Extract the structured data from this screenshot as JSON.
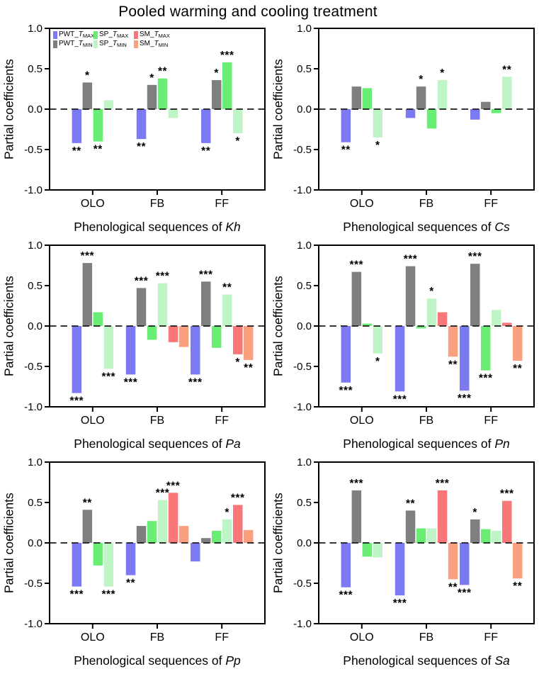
{
  "title": "Pooled warming and cooling treatment",
  "axis": {
    "ylabel": "Partial coefficients",
    "yticks": [
      {
        "label": "1.0",
        "v": 1.0
      },
      {
        "label": "0.5",
        "v": 0.5
      },
      {
        "label": "0.0",
        "v": 0.0
      },
      {
        "label": "-0.5",
        "v": -0.5
      },
      {
        "label": "-1.0",
        "v": -1.0
      }
    ],
    "ylim": [
      -1.0,
      1.0
    ]
  },
  "series_colors": {
    "PWT_TMAX": "#7B7AF2",
    "PWT_TMIN": "#7F7F7F",
    "SP_TMAX": "#69ED75",
    "SP_TMIN": "#BFF4C6",
    "SM_TMAX": "#F97779",
    "SM_TMIN": "#FAA07E"
  },
  "legend": {
    "entries": [
      {
        "prefix": "PWT_",
        "t": "T",
        "sub": "MAX",
        "color": "#7B7AF2"
      },
      {
        "prefix": "SP_",
        "t": "T",
        "sub": "MAX",
        "color": "#69ED75"
      },
      {
        "prefix": "SM_",
        "t": "T",
        "sub": "MAX",
        "color": "#F97779"
      },
      {
        "prefix": "PWT_",
        "t": "T",
        "sub": "MIN",
        "color": "#7F7F7F"
      },
      {
        "prefix": "SP_",
        "t": "T",
        "sub": "MIN",
        "color": "#BFF4C6"
      },
      {
        "prefix": "SM_",
        "t": "T",
        "sub": "MIN",
        "color": "#FAA07E"
      }
    ]
  },
  "chart_data": [
    {
      "type": "bar",
      "species": "Kh",
      "xlabel_prefix": "Phenological sequences of ",
      "ylabel": "Partial coefficients",
      "ylim": [
        -1.0,
        1.0
      ],
      "categories": [
        "OLO",
        "FB",
        "FF"
      ],
      "series": [
        {
          "name": "PWT_TMAX",
          "values": [
            -0.42,
            -0.37,
            -0.42
          ],
          "sig": [
            "**",
            "**",
            "**"
          ]
        },
        {
          "name": "PWT_TMIN",
          "values": [
            0.33,
            0.3,
            0.36
          ],
          "sig": [
            "*",
            "*",
            "*"
          ]
        },
        {
          "name": "SP_TMAX",
          "values": [
            -0.4,
            0.38,
            0.58
          ],
          "sig": [
            "**",
            "**",
            "***"
          ]
        },
        {
          "name": "SP_TMIN",
          "values": [
            0.11,
            -0.11,
            -0.3
          ],
          "sig": [
            "",
            "",
            "*"
          ]
        }
      ]
    },
    {
      "type": "bar",
      "species": "Cs",
      "xlabel_prefix": "Phenological sequences of ",
      "ylabel": "Partial coefficients",
      "ylim": [
        -1.0,
        1.0
      ],
      "categories": [
        "OLO",
        "FB",
        "FF"
      ],
      "series": [
        {
          "name": "PWT_TMAX",
          "values": [
            -0.41,
            -0.11,
            -0.13
          ],
          "sig": [
            "**",
            "",
            ""
          ]
        },
        {
          "name": "PWT_TMIN",
          "values": [
            0.28,
            0.28,
            0.09
          ],
          "sig": [
            "",
            "*",
            ""
          ]
        },
        {
          "name": "SP_TMAX",
          "values": [
            0.26,
            -0.24,
            -0.05
          ],
          "sig": [
            "",
            "",
            ""
          ]
        },
        {
          "name": "SP_TMIN",
          "values": [
            -0.35,
            0.36,
            0.4
          ],
          "sig": [
            "*",
            "*",
            "**"
          ]
        }
      ]
    },
    {
      "type": "bar",
      "species": "Pa",
      "xlabel_prefix": "Phenological sequences of ",
      "ylabel": "Partial coefficients",
      "ylim": [
        -1.0,
        1.0
      ],
      "categories": [
        "OLO",
        "FB",
        "FF"
      ],
      "series": [
        {
          "name": "PWT_TMAX",
          "values": [
            -0.83,
            -0.6,
            -0.6
          ],
          "sig": [
            "***",
            "***",
            "***"
          ]
        },
        {
          "name": "PWT_TMIN",
          "values": [
            0.78,
            0.47,
            0.55
          ],
          "sig": [
            "***",
            "***",
            "***"
          ]
        },
        {
          "name": "SP_TMAX",
          "values": [
            0.17,
            -0.17,
            -0.27
          ],
          "sig": [
            "",
            "",
            ""
          ]
        },
        {
          "name": "SP_TMIN",
          "values": [
            -0.53,
            0.53,
            0.39
          ],
          "sig": [
            "***",
            "***",
            "**"
          ]
        },
        {
          "name": "SM_TMAX",
          "values": [
            null,
            -0.2,
            -0.35
          ],
          "sig": [
            "",
            "",
            "*"
          ]
        },
        {
          "name": "SM_TMIN",
          "values": [
            null,
            -0.26,
            -0.42
          ],
          "sig": [
            "",
            "",
            "**"
          ]
        }
      ]
    },
    {
      "type": "bar",
      "species": "Pn",
      "xlabel_prefix": "Phenological sequences of ",
      "ylabel": "Partial coefficients",
      "ylim": [
        -1.0,
        1.0
      ],
      "categories": [
        "OLO",
        "FB",
        "FF"
      ],
      "series": [
        {
          "name": "PWT_TMAX",
          "values": [
            -0.7,
            -0.81,
            -0.8
          ],
          "sig": [
            "***",
            "***",
            "***"
          ]
        },
        {
          "name": "PWT_TMIN",
          "values": [
            0.67,
            0.74,
            0.77
          ],
          "sig": [
            "***",
            "***",
            "***"
          ]
        },
        {
          "name": "SP_TMAX",
          "values": [
            0.03,
            -0.03,
            -0.55
          ],
          "sig": [
            "",
            "",
            "***"
          ]
        },
        {
          "name": "SP_TMIN",
          "values": [
            -0.34,
            0.34,
            0.2
          ],
          "sig": [
            "*",
            "*",
            ""
          ]
        },
        {
          "name": "SM_TMAX",
          "values": [
            null,
            0.17,
            0.04
          ],
          "sig": [
            "",
            "",
            ""
          ]
        },
        {
          "name": "SM_TMIN",
          "values": [
            null,
            -0.38,
            -0.43
          ],
          "sig": [
            "",
            "**",
            "**"
          ]
        }
      ]
    },
    {
      "type": "bar",
      "species": "Pp",
      "xlabel_prefix": "Phenological sequences of ",
      "ylabel": "Partial coefficients",
      "ylim": [
        -1.0,
        1.0
      ],
      "categories": [
        "OLO",
        "FB",
        "FF"
      ],
      "series": [
        {
          "name": "PWT_TMAX",
          "values": [
            -0.54,
            -0.4,
            -0.23
          ],
          "sig": [
            "***",
            "**",
            ""
          ]
        },
        {
          "name": "PWT_TMIN",
          "values": [
            0.41,
            0.21,
            0.06
          ],
          "sig": [
            "**",
            "",
            ""
          ]
        },
        {
          "name": "SP_TMAX",
          "values": [
            -0.28,
            0.27,
            0.15
          ],
          "sig": [
            "",
            "",
            ""
          ]
        },
        {
          "name": "SP_TMIN",
          "values": [
            -0.54,
            0.53,
            0.29
          ],
          "sig": [
            "***",
            "***",
            "*"
          ]
        },
        {
          "name": "SM_TMAX",
          "values": [
            null,
            0.62,
            0.47
          ],
          "sig": [
            "",
            "***",
            "***"
          ]
        },
        {
          "name": "SM_TMIN",
          "values": [
            null,
            0.21,
            0.16
          ],
          "sig": [
            "",
            "",
            ""
          ]
        }
      ]
    },
    {
      "type": "bar",
      "species": "Sa",
      "xlabel_prefix": "Phenological sequences of ",
      "ylabel": "Partial coefficients",
      "ylim": [
        -1.0,
        1.0
      ],
      "categories": [
        "OLO",
        "FB",
        "FF"
      ],
      "series": [
        {
          "name": "PWT_TMAX",
          "values": [
            -0.55,
            -0.65,
            -0.52
          ],
          "sig": [
            "***",
            "***",
            "***"
          ]
        },
        {
          "name": "PWT_TMIN",
          "values": [
            0.65,
            0.4,
            0.29
          ],
          "sig": [
            "***",
            "**",
            "*"
          ]
        },
        {
          "name": "SP_TMAX",
          "values": [
            -0.17,
            0.18,
            0.17
          ],
          "sig": [
            "",
            "",
            ""
          ]
        },
        {
          "name": "SP_TMIN",
          "values": [
            -0.18,
            0.18,
            0.15
          ],
          "sig": [
            "",
            "",
            ""
          ]
        },
        {
          "name": "SM_TMAX",
          "values": [
            null,
            0.65,
            0.52
          ],
          "sig": [
            "",
            "***",
            "***"
          ]
        },
        {
          "name": "SM_TMIN",
          "values": [
            null,
            -0.45,
            -0.44
          ],
          "sig": [
            "",
            "**",
            "**"
          ]
        }
      ]
    }
  ]
}
